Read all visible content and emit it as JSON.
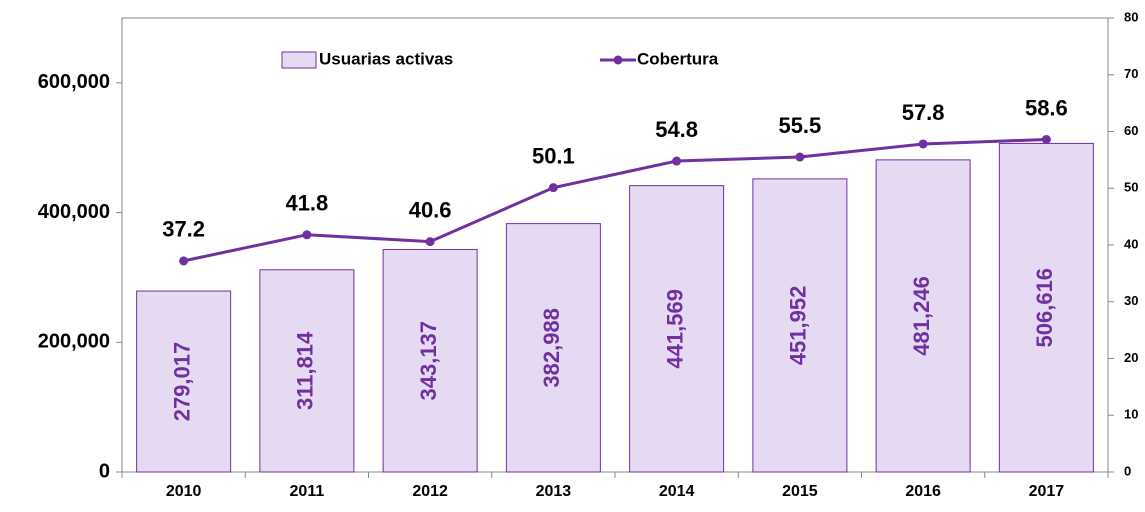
{
  "chart_data": {
    "type": "bar-line",
    "categories": [
      "2010",
      "2011",
      "2012",
      "2013",
      "2014",
      "2015",
      "2016",
      "2017"
    ],
    "series": [
      {
        "name": "Usuarias activas",
        "type": "bar",
        "color": "#e6d9f2",
        "edge_color": "#7030a0",
        "label_color": "#7030a0",
        "values": [
          279017,
          311814,
          343137,
          382988,
          441569,
          451952,
          481246,
          506616
        ],
        "value_labels": [
          "279,017",
          "311,814",
          "343,137",
          "382,988",
          "441,569",
          "451,952",
          "481,246",
          "506,616"
        ]
      },
      {
        "name": "Cobertura",
        "type": "line",
        "axis": "y2",
        "color": "#7030a0",
        "values": [
          37.2,
          41.8,
          40.6,
          50.1,
          54.8,
          55.5,
          57.8,
          58.6
        ]
      }
    ],
    "ylim": [
      0,
      700000
    ],
    "yticks": [
      0,
      {
        "value": 200000,
        "label": "200,000"
      },
      {
        "value": 400000,
        "label": "400,000"
      },
      {
        "value": 600000,
        "label": "600,000"
      }
    ],
    "y2lim": [
      0,
      80
    ],
    "y2ticks": [
      0,
      10,
      20,
      30,
      40,
      50,
      60,
      70,
      80
    ],
    "legend": "top"
  }
}
